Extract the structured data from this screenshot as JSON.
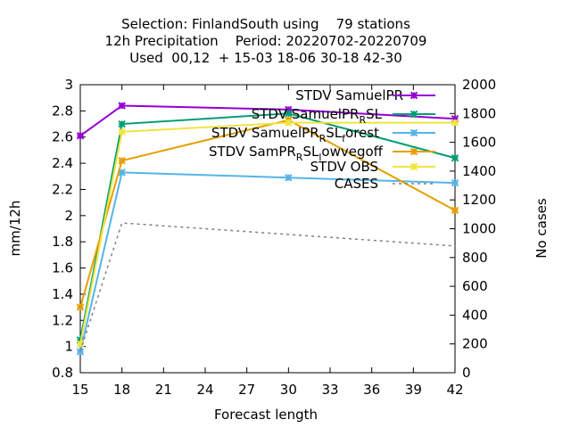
{
  "chart_data": {
    "type": "line",
    "title_lines": [
      "Selection: FinlandSouth using    79 stations",
      "12h Precipitation    Period: 20220702-20220709",
      "Used  00,12  + 15-03 18-06 30-18 42-30"
    ],
    "xlabel": "Forecast length",
    "ylabel": "mm/12h",
    "y2label": "No cases",
    "xlim": [
      15,
      42
    ],
    "ylim": [
      0.8,
      3.0
    ],
    "y2lim": [
      0,
      2000
    ],
    "xticks": [
      "15",
      "18",
      "21",
      "24",
      "27",
      "30",
      "33",
      "36",
      "39",
      "42"
    ],
    "yticks": [
      "0.8",
      "1",
      "1.2",
      "1.4",
      "1.6",
      "1.8",
      "2",
      "2.2",
      "2.4",
      "2.6",
      "2.8",
      "3"
    ],
    "y2ticks": [
      "0",
      "200",
      "400",
      "600",
      "800",
      "1000",
      "1200",
      "1400",
      "1600",
      "1800",
      "2000"
    ],
    "x": [
      15,
      18,
      30,
      42
    ],
    "legend_position": "top-right",
    "series": [
      {
        "name": "STDV SamuelPR",
        "color": "#9400d3",
        "axis": "y1",
        "values": [
          2.61,
          2.84,
          2.81,
          2.74
        ]
      },
      {
        "name": "STDV SamuelPR_RSL",
        "color": "#009e73",
        "axis": "y1",
        "values": [
          1.05,
          2.7,
          2.78,
          2.44
        ]
      },
      {
        "name": "STDV SamuelPR_RSL_forest",
        "color": "#56b4e9",
        "axis": "y1",
        "values": [
          0.96,
          2.33,
          2.29,
          2.25
        ]
      },
      {
        "name": "STDV SamPR_RSL_lowvegoff",
        "color": "#e69f00",
        "axis": "y1",
        "values": [
          1.3,
          2.42,
          2.73,
          2.04
        ]
      },
      {
        "name": "STDV OBS",
        "color": "#f0e442",
        "axis": "y1",
        "values": [
          1.02,
          2.64,
          2.71,
          2.71
        ]
      },
      {
        "name": "CASES",
        "color": "#808080",
        "axis": "y2",
        "dashed": true,
        "values": [
          150,
          1040,
          960,
          880
        ]
      }
    ]
  }
}
